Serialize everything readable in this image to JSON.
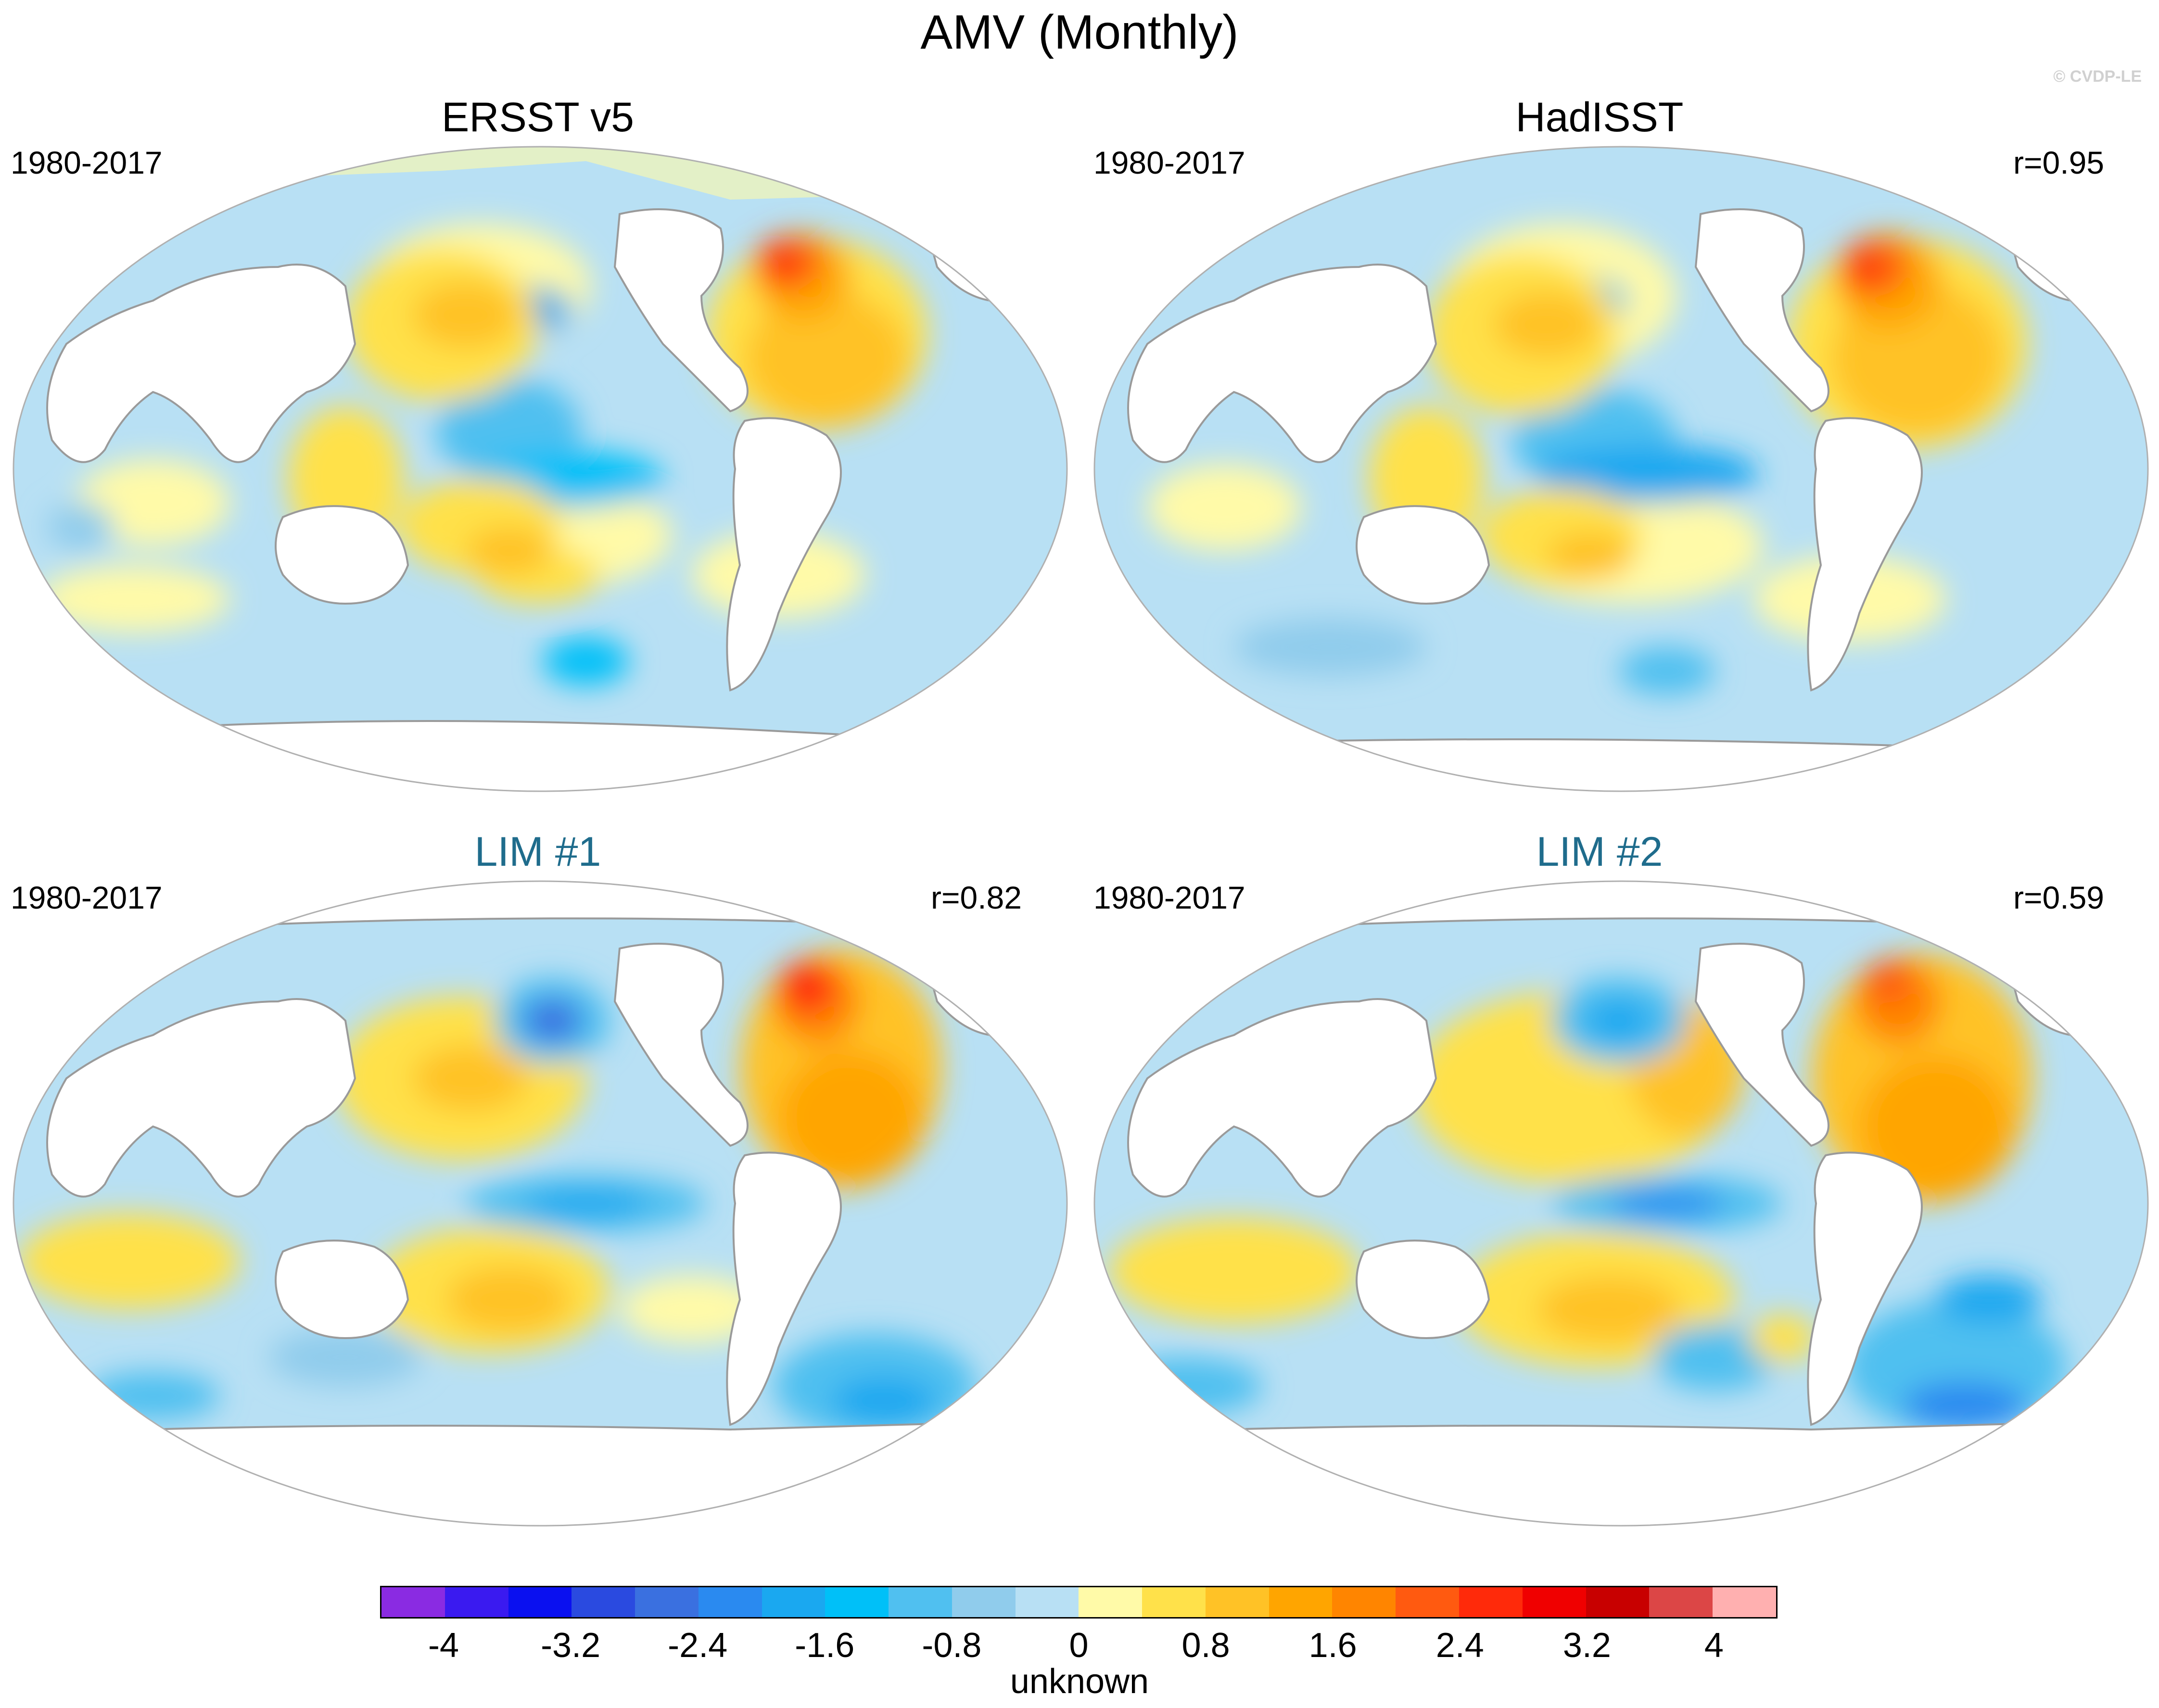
{
  "title": "AMV (Monthly)",
  "watermark": "© CVDP-LE",
  "panels": [
    {
      "title": "ERSST v5",
      "period": "1980-2017",
      "corr": "",
      "style": "obs"
    },
    {
      "title": "HadISST",
      "period": "1980-2017",
      "corr": "r=0.95",
      "style": "obs"
    },
    {
      "title": "LIM #1",
      "period": "1980-2017",
      "corr": "r=0.82",
      "style": "lim"
    },
    {
      "title": "LIM #2",
      "period": "1980-2017",
      "corr": "r=0.59",
      "style": "lim"
    }
  ],
  "colorbar": {
    "colors": [
      "#8a2be2",
      "#3a1af0",
      "#0a10f0",
      "#2a4ae0",
      "#3a70e0",
      "#2a8af0",
      "#1aa8f0",
      "#00c0f8",
      "#50c0f0",
      "#90ccec",
      "#b8e0f4",
      "#fffaa8",
      "#ffe14a",
      "#ffc226",
      "#ffa500",
      "#ff8500",
      "#ff5a10",
      "#ff2a0a",
      "#f00000",
      "#c80000",
      "#dc4646",
      "#ffb0b0"
    ],
    "labels": [
      "-4",
      "-3.2",
      "-2.4",
      "-1.6",
      "-0.8",
      "0",
      "0.8",
      "1.6",
      "2.4",
      "3.2",
      "4"
    ],
    "label_values": [
      -4,
      -3.2,
      -2.4,
      -1.6,
      -0.8,
      0,
      0.8,
      1.6,
      2.4,
      3.2,
      4
    ],
    "min": -4.4,
    "max": 4.4,
    "units": "unknown"
  },
  "map_colors": {
    "ocean_base": "#b8e0f4",
    "coast": "#9a9a9a",
    "land": "#ffffff"
  }
}
